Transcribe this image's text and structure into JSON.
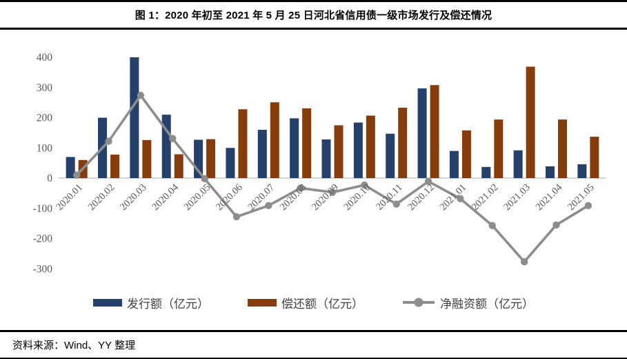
{
  "figure": {
    "title": "图 1：2020 年初至 2021 年 5 月 25 日河北省信用债一级市场发行及偿还情况",
    "source": "资料来源：Wind、YY 整理"
  },
  "chart_data": {
    "type": "bar",
    "subtype": "grouped-bars-with-line",
    "title": "",
    "xlabel": "",
    "ylabel": "",
    "categories": [
      "2020.01",
      "2020.02",
      "2020.03",
      "2020.04",
      "2020.05",
      "2020.06",
      "2020.07",
      "2020.08",
      "2020.09",
      "2020.10",
      "2020.11",
      "2020.12",
      "2021.01",
      "2021.02",
      "2021.03",
      "2021.04",
      "2021.05"
    ],
    "series": [
      {
        "key": "issuance",
        "name": "发行额（亿元）",
        "type": "bar",
        "color": "#24406B",
        "values": [
          70,
          200,
          400,
          210,
          127,
          100,
          160,
          198,
          128,
          184,
          147,
          297,
          90,
          37,
          92,
          39,
          46
        ]
      },
      {
        "key": "repayment",
        "name": "偿还额（亿元）",
        "type": "bar",
        "color": "#873C0C",
        "values": [
          60,
          78,
          126,
          79,
          129,
          228,
          251,
          231,
          175,
          207,
          233,
          308,
          158,
          194,
          369,
          194,
          137
        ]
      },
      {
        "key": "net-financing",
        "name": "净融资额（亿元）",
        "type": "line",
        "color": "#8D8D8D",
        "values": [
          10,
          122,
          274,
          131,
          -2,
          -128,
          -91,
          -33,
          -47,
          -23,
          -86,
          -11,
          -68,
          -157,
          -277,
          -155,
          -91
        ]
      }
    ],
    "ylim": [
      -300,
      400
    ],
    "yticks": [
      400,
      300,
      200,
      100,
      0,
      -100,
      -200,
      -300
    ],
    "grid": false,
    "legend_position": "bottom",
    "axis_color": "#C8C8C8",
    "tick_color": "#595959"
  }
}
